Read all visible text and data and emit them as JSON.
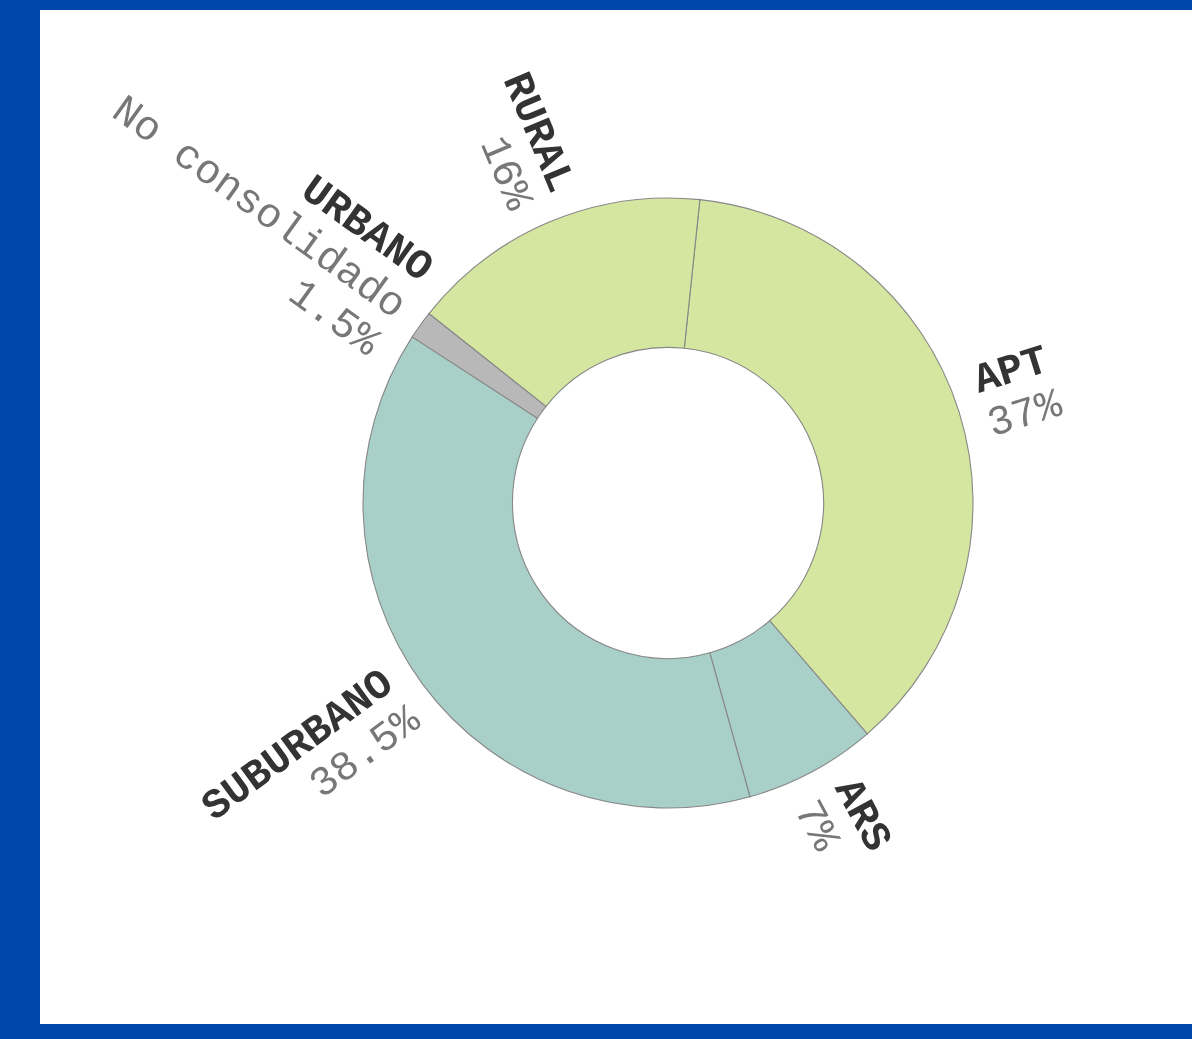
{
  "chart_data": {
    "type": "donut",
    "categories": [
      "APT",
      "ARS",
      "SUBURBANO",
      "URBANO\nNo consolidado",
      "RURAL"
    ],
    "values": [
      37,
      7,
      38.5,
      1.5,
      16
    ],
    "value_labels": [
      "37%",
      "7%",
      "38.5%",
      "1.5%",
      "16%"
    ],
    "colors": [
      "#d4e6a0",
      "#a8cfc8",
      "#a8cfc8",
      "#b8b8b8",
      "#d4e6a0"
    ],
    "legend": false
  }
}
